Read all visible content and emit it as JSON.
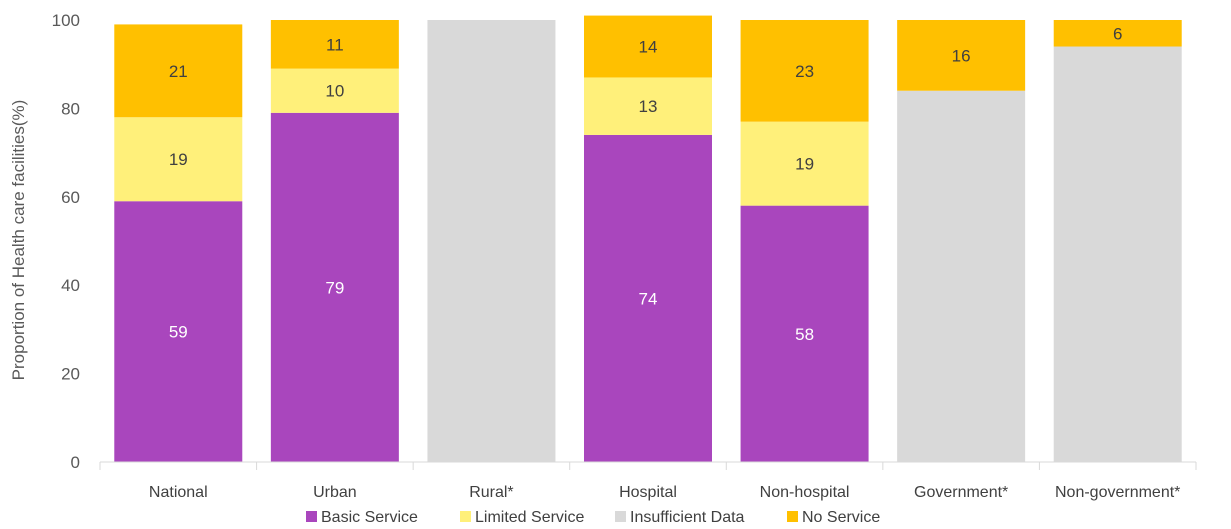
{
  "chart_data": {
    "type": "bar",
    "stacked": true,
    "categories": [
      "National",
      "Urban",
      "Rural*",
      "Hospital",
      "Non-hospital",
      "Government*",
      "Non-government*"
    ],
    "series": [
      {
        "name": "Basic Service",
        "color": "#A946BD",
        "values": [
          59,
          79,
          0,
          74,
          58,
          0,
          0
        ],
        "labels": [
          "59",
          "79",
          "",
          "74",
          "58",
          "",
          ""
        ]
      },
      {
        "name": "Limited Service",
        "color": "#FFF07A",
        "values": [
          19,
          10,
          0,
          13,
          19,
          0,
          0
        ],
        "labels": [
          "19",
          "10",
          "",
          "13",
          "19",
          "",
          ""
        ]
      },
      {
        "name": "Insufficient Data",
        "color": "#D9D9D9",
        "values": [
          0,
          0,
          100,
          0,
          0,
          84,
          94
        ],
        "labels": [
          "",
          "",
          "",
          "",
          "",
          "",
          ""
        ]
      },
      {
        "name": "No Service",
        "color": "#FFC000",
        "values": [
          21,
          11,
          0,
          14,
          23,
          16,
          6
        ],
        "labels": [
          "21",
          "11",
          "",
          "14",
          "23",
          "16",
          "6"
        ]
      }
    ],
    "title": "",
    "xlabel": "",
    "ylabel": "Proportion of Health care facilities(%)",
    "ylim": [
      0,
      100
    ],
    "yticks": [
      0,
      20,
      40,
      60,
      80,
      100
    ],
    "grid": false,
    "legend_position": "bottom"
  }
}
